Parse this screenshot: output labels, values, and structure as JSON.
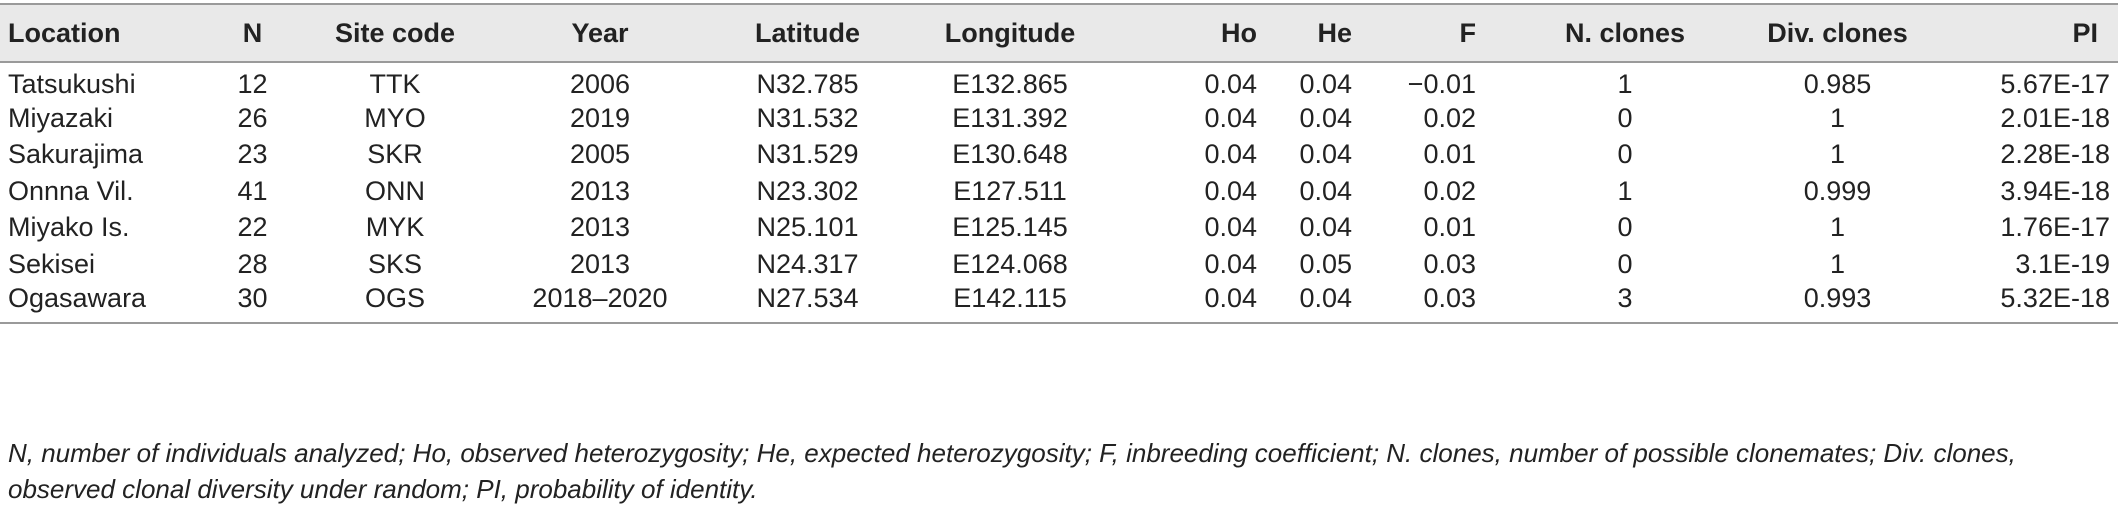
{
  "table": {
    "headers": [
      "Location",
      "N",
      "Site code",
      "Year",
      "Latitude",
      "Longitude",
      "Ho",
      "He",
      "F",
      "N. clones",
      "Div. clones",
      "PI"
    ],
    "rows": [
      [
        "Tatsukushi",
        "12",
        "TTK",
        "2006",
        "N32.785",
        "E132.865",
        "0.04",
        "0.04",
        "−0.01",
        "1",
        "0.985",
        "5.67E-17"
      ],
      [
        "Miyazaki",
        "26",
        "MYO",
        "2019",
        "N31.532",
        "E131.392",
        "0.04",
        "0.04",
        "0.02",
        "0",
        "1",
        "2.01E-18"
      ],
      [
        "Sakurajima",
        "23",
        "SKR",
        "2005",
        "N31.529",
        "E130.648",
        "0.04",
        "0.04",
        "0.01",
        "0",
        "1",
        "2.28E-18"
      ],
      [
        "Onnna Vil.",
        "41",
        "ONN",
        "2013",
        "N23.302",
        "E127.511",
        "0.04",
        "0.04",
        "0.02",
        "1",
        "0.999",
        "3.94E-18"
      ],
      [
        "Miyako Is.",
        "22",
        "MYK",
        "2013",
        "N25.101",
        "E125.145",
        "0.04",
        "0.04",
        "0.01",
        "0",
        "1",
        "1.76E-17"
      ],
      [
        "Sekisei",
        "28",
        "SKS",
        "2013",
        "N24.317",
        "E124.068",
        "0.04",
        "0.05",
        "0.03",
        "0",
        "1",
        "3.1E-19"
      ],
      [
        "Ogasawara",
        "30",
        "OGS",
        "2018–2020",
        "N27.534",
        "E142.115",
        "0.04",
        "0.04",
        "0.03",
        "3",
        "0.993",
        "5.32E-18"
      ]
    ]
  },
  "footnote": "N, number of individuals analyzed; Ho, observed heterozygosity; He, expected heterozygosity; F, inbreeding coefficient; N. clones, number of possible clonemates; Div. clones, observed clonal diversity under random; PI, probability of identity."
}
